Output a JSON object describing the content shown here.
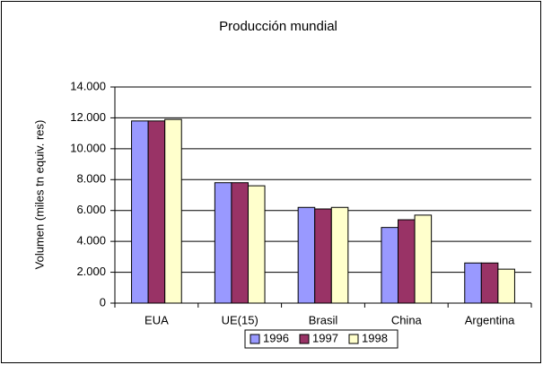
{
  "chart_data": {
    "type": "bar",
    "title": "Producción mundial",
    "y_label": "Volumen (miles tn equiv. res)",
    "categories": [
      "EUA",
      "UE(15)",
      "Brasil",
      "China",
      "Argentina"
    ],
    "series": [
      {
        "name": "1996",
        "color": "#9999ff",
        "values": [
          11800,
          7800,
          6200,
          4900,
          2600
        ]
      },
      {
        "name": "1997",
        "color": "#993366",
        "values": [
          11800,
          7800,
          6100,
          5400,
          2600
        ]
      },
      {
        "name": "1998",
        "color": "#ffffcc",
        "values": [
          11900,
          7600,
          6200,
          5700,
          2200
        ]
      }
    ],
    "ylim": [
      0,
      14000
    ],
    "yticks": [
      0,
      {
        "value": 2000,
        "label": "2.000"
      },
      {
        "value": 4000,
        "label": "4.000"
      },
      {
        "value": 6000,
        "label": "6.000"
      },
      {
        "value": 8000,
        "label": "8.000"
      },
      {
        "value": 10000,
        "label": "10.000"
      },
      {
        "value": 12000,
        "label": "12.000"
      },
      {
        "value": 14000,
        "label": "14.000"
      }
    ],
    "grid": true,
    "legend": "bottom"
  }
}
